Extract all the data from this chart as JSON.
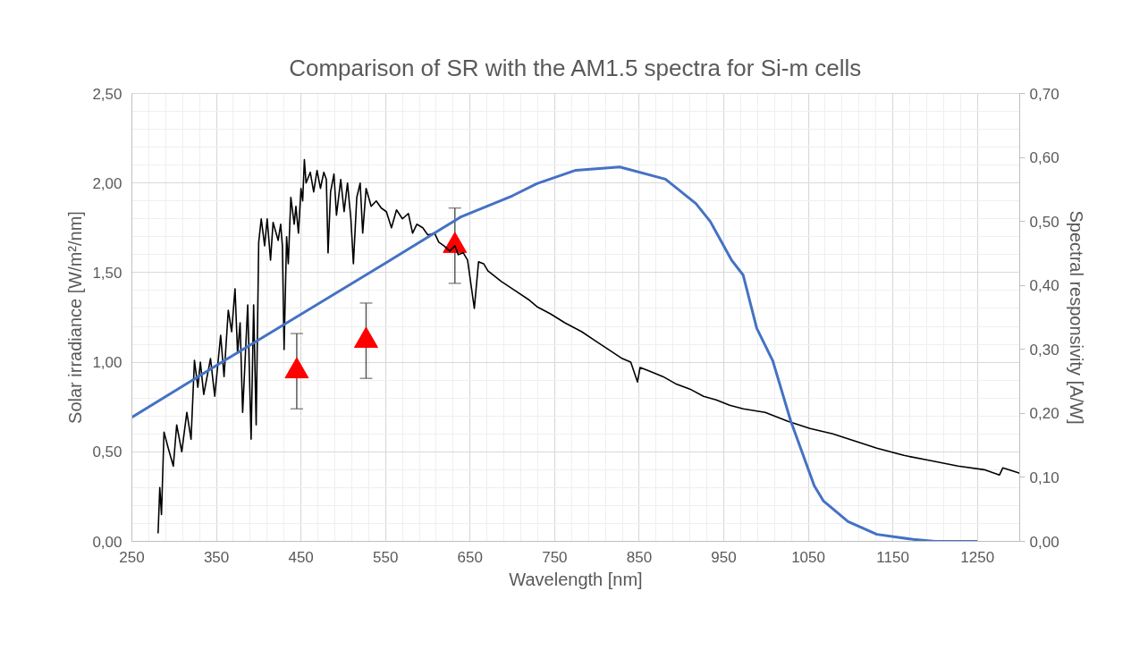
{
  "chart_data": {
    "type": "line",
    "title": "Comparison of SR with the AM1.5 spectra for Si-m cells",
    "xlabel": "Wavelength [nm]",
    "ylabel": "Solar irradiance [W/m²/nm]",
    "y2label": "Spectral responsivity [A/W]",
    "xlim": [
      250,
      1300
    ],
    "xticks": [
      250,
      350,
      450,
      550,
      650,
      750,
      850,
      950,
      1050,
      1150,
      1250
    ],
    "ylim": [
      0,
      2.5
    ],
    "yticks": [
      {
        "value": 0,
        "label": "0,00"
      },
      {
        "value": 0.5,
        "label": "0,50"
      },
      {
        "value": 1.0,
        "label": "1,00"
      },
      {
        "value": 1.5,
        "label": "1,50"
      },
      {
        "value": 2.0,
        "label": "2,00"
      },
      {
        "value": 2.5,
        "label": "2,50"
      }
    ],
    "y2lim": [
      0,
      0.7
    ],
    "y2ticks": [
      {
        "value": 0,
        "label": "0,00"
      },
      {
        "value": 0.1,
        "label": "0,10"
      },
      {
        "value": 0.2,
        "label": "0,20"
      },
      {
        "value": 0.3,
        "label": "0,30"
      },
      {
        "value": 0.4,
        "label": "0,40"
      },
      {
        "value": 0.5,
        "label": "0,50"
      },
      {
        "value": 0.6,
        "label": "0,60"
      },
      {
        "value": 0.7,
        "label": "0,70"
      }
    ],
    "grid": true,
    "series": [
      {
        "color": "#000000",
        "x": [
          281,
          283,
          285,
          288,
          293,
          299,
          303,
          309,
          315,
          320,
          324,
          328,
          331,
          335,
          343,
          348,
          355,
          359,
          364,
          368,
          372,
          375,
          378,
          381,
          387,
          391,
          394,
          397,
          400,
          403,
          407,
          410,
          414,
          417,
          423,
          426,
          428,
          430,
          433,
          435,
          438,
          442,
          444,
          447,
          450,
          452,
          454,
          456,
          461,
          465,
          469,
          473,
          477,
          480,
          482,
          485,
          489,
          492,
          497,
          501,
          505,
          509,
          512,
          516,
          520,
          523,
          527,
          533,
          539,
          545,
          551,
          557,
          563,
          570,
          577,
          582,
          587,
          594,
          600,
          608,
          613,
          619,
          626,
          632,
          636,
          642,
          647,
          655,
          660,
          666,
          671,
          687,
          703,
          719,
          729,
          745,
          762,
          782,
          798,
          814,
          830,
          840,
          848,
          851,
          862,
          878,
          893,
          910,
          926,
          941,
          957,
          973,
          999,
          1026,
          1052,
          1079,
          1105,
          1131,
          1163,
          1195,
          1227,
          1258,
          1276,
          1280,
          1300
        ],
        "values": [
          0.045,
          0.3,
          0.15,
          0.61,
          0.52,
          0.42,
          0.65,
          0.5,
          0.72,
          0.57,
          1.01,
          0.86,
          1.0,
          0.82,
          1.02,
          0.81,
          1.15,
          0.92,
          1.29,
          1.17,
          1.41,
          1.05,
          1.22,
          0.72,
          1.32,
          0.57,
          1.32,
          0.65,
          1.67,
          1.8,
          1.65,
          1.8,
          1.57,
          1.78,
          1.68,
          1.77,
          1.65,
          1.07,
          1.7,
          1.55,
          1.92,
          1.77,
          1.87,
          1.72,
          1.97,
          1.9,
          2.13,
          2.0,
          2.06,
          1.95,
          2.07,
          1.97,
          2.06,
          2.02,
          1.61,
          1.95,
          2.05,
          1.82,
          2.02,
          1.84,
          2.0,
          1.8,
          1.55,
          1.92,
          2.0,
          1.72,
          1.97,
          1.87,
          1.9,
          1.86,
          1.84,
          1.75,
          1.85,
          1.8,
          1.83,
          1.72,
          1.77,
          1.75,
          1.71,
          1.72,
          1.67,
          1.65,
          1.62,
          1.65,
          1.6,
          1.61,
          1.57,
          1.3,
          1.56,
          1.55,
          1.51,
          1.45,
          1.4,
          1.35,
          1.31,
          1.27,
          1.22,
          1.17,
          1.12,
          1.07,
          1.02,
          1.0,
          0.89,
          0.97,
          0.95,
          0.92,
          0.88,
          0.85,
          0.81,
          0.79,
          0.76,
          0.74,
          0.72,
          0.67,
          0.63,
          0.6,
          0.56,
          0.52,
          0.48,
          0.45,
          0.42,
          0.4,
          0.37,
          0.41,
          0.38
        ]
      },
      {
        "axis": "y2",
        "color": "#4472c4",
        "x": [
          250,
          350,
          450,
          550,
          639,
          700,
          729,
          775,
          827,
          881,
          917,
          934,
          959,
          973,
          989,
          1008,
          1029,
          1057,
          1068,
          1097,
          1131,
          1174,
          1200,
          1250
        ],
        "values": [
          0.194,
          0.275,
          0.355,
          0.435,
          0.507,
          0.54,
          0.559,
          0.58,
          0.585,
          0.566,
          0.528,
          0.5,
          0.44,
          0.416,
          0.333,
          0.282,
          0.189,
          0.087,
          0.063,
          0.031,
          0.011,
          0.003,
          0.0,
          0.0
        ]
      },
      {
        "type": "scatter",
        "marker": "triangle",
        "color": "#ff0000",
        "x": [
          445,
          527,
          632
        ],
        "values": [
          0.95,
          1.12,
          1.65
        ],
        "errors": [
          0.21,
          0.21,
          0.21
        ]
      }
    ]
  }
}
